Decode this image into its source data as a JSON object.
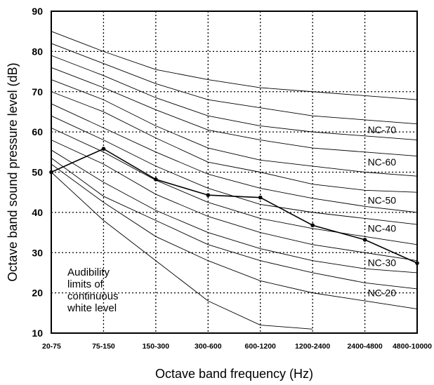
{
  "chart_data": {
    "type": "line",
    "xlabel": "Octave band frequency (Hz)",
    "ylabel": "Octave band sound pressure level (dB)",
    "categories": [
      "20-75",
      "75-150",
      "150-300",
      "300-600",
      "600-1200",
      "1200-2400",
      "2400-4800",
      "4800-10000"
    ],
    "yticks": [
      10,
      20,
      30,
      40,
      50,
      60,
      70,
      80,
      90
    ],
    "ylim": [
      10,
      90
    ],
    "grid": "dotted",
    "nc_curves": [
      {
        "label": "",
        "values": [
          85,
          80,
          75.5,
          73,
          71,
          70,
          69,
          68
        ]
      },
      {
        "label": "NC-70",
        "values": [
          82,
          77,
          72,
          68,
          66,
          64,
          63,
          62
        ]
      },
      {
        "label": "",
        "values": [
          79,
          74,
          68.5,
          64,
          61.5,
          60,
          59,
          58
        ]
      },
      {
        "label": "NC-60",
        "values": [
          76,
          71,
          65.5,
          60.5,
          58,
          56,
          55,
          54
        ]
      },
      {
        "label": "",
        "values": [
          73,
          68,
          61.5,
          56,
          53,
          51.5,
          50,
          49
        ]
      },
      {
        "label": "NC-50",
        "values": [
          70,
          65,
          58.5,
          52.5,
          50,
          47,
          45.5,
          45
        ]
      },
      {
        "label": "",
        "values": [
          67,
          61,
          55,
          49.5,
          46,
          43.5,
          41.5,
          40
        ]
      },
      {
        "label": "NC-40",
        "values": [
          64,
          58,
          51.5,
          46,
          42,
          40,
          38.5,
          37
        ]
      },
      {
        "label": "",
        "values": [
          61,
          55,
          48,
          42.5,
          38.5,
          36,
          34,
          32
        ]
      },
      {
        "label": "NC-30",
        "values": [
          58,
          52,
          44.5,
          39,
          35,
          32,
          30,
          28
        ]
      },
      {
        "label": "",
        "values": [
          55.5,
          47.5,
          40.5,
          35,
          31,
          28,
          26,
          25
        ]
      },
      {
        "label": "NC-20",
        "values": [
          53.5,
          44,
          38,
          32,
          28,
          25,
          22.5,
          21
        ]
      },
      {
        "label": "",
        "values": [
          52,
          42.5,
          34,
          28,
          23,
          20,
          18,
          16
        ]
      },
      {
        "label": "",
        "values": [
          50,
          38,
          28,
          18,
          12,
          11,
          null,
          null
        ]
      }
    ],
    "series": [
      {
        "values": [
          50,
          55.8,
          48.2,
          44.3,
          43.7,
          36.8,
          33.2,
          27.4
        ]
      }
    ],
    "annotation": [
      "Audibility",
      "limits of",
      "continuous",
      "white level"
    ]
  }
}
